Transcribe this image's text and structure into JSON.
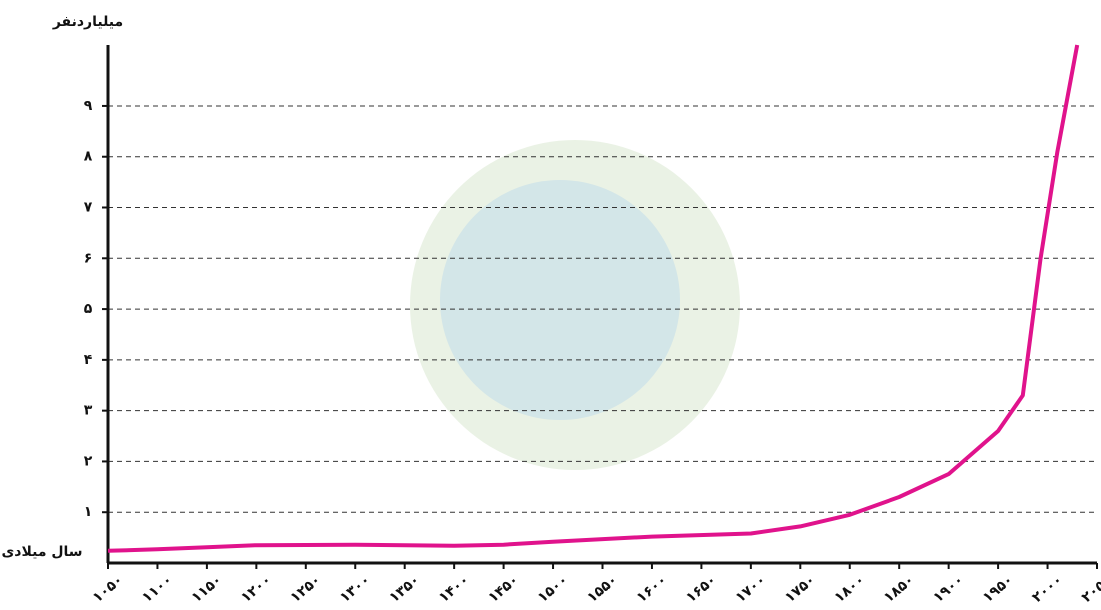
{
  "chart_data": {
    "type": "line",
    "y_label": "میلیاردنفر",
    "x_label": "سال میلادی",
    "color": "#e0138c",
    "grid": true,
    "xlim": [
      1050,
      2050
    ],
    "ylim": [
      0,
      10.2
    ],
    "yticks": [
      {
        "value": 1,
        "label": "۱"
      },
      {
        "value": 2,
        "label": "۲"
      },
      {
        "value": 3,
        "label": "۳"
      },
      {
        "value": 4,
        "label": "۴"
      },
      {
        "value": 5,
        "label": "۵"
      },
      {
        "value": 6,
        "label": "۶"
      },
      {
        "value": 7,
        "label": "۷"
      },
      {
        "value": 8,
        "label": "۸"
      },
      {
        "value": 9,
        "label": "۹"
      }
    ],
    "xticks": [
      {
        "value": 1050,
        "label": "۱۰۵۰"
      },
      {
        "value": 1100,
        "label": "۱۱۰۰"
      },
      {
        "value": 1150,
        "label": "۱۱۵۰"
      },
      {
        "value": 1200,
        "label": "۱۲۰۰"
      },
      {
        "value": 1250,
        "label": "۱۲۵۰"
      },
      {
        "value": 1300,
        "label": "۱۳۰۰"
      },
      {
        "value": 1350,
        "label": "۱۳۵۰"
      },
      {
        "value": 1400,
        "label": "۱۴۰۰"
      },
      {
        "value": 1450,
        "label": "۱۴۵۰"
      },
      {
        "value": 1500,
        "label": "۱۵۰۰"
      },
      {
        "value": 1550,
        "label": "۱۵۵۰"
      },
      {
        "value": 1600,
        "label": "۱۶۰۰"
      },
      {
        "value": 1650,
        "label": "۱۶۵۰"
      },
      {
        "value": 1700,
        "label": "۱۷۰۰"
      },
      {
        "value": 1750,
        "label": "۱۷۵۰"
      },
      {
        "value": 1800,
        "label": "۱۸۰۰"
      },
      {
        "value": 1850,
        "label": "۱۸۵۰"
      },
      {
        "value": 1900,
        "label": "۱۹۰۰"
      },
      {
        "value": 1950,
        "label": "۱۹۵۰"
      },
      {
        "value": 2000,
        "label": "۲۰۰۰"
      },
      {
        "value": 2050,
        "label": "۲۰۵۰"
      }
    ],
    "x": [
      1050,
      1100,
      1150,
      1200,
      1300,
      1400,
      1450,
      1500,
      1600,
      1700,
      1750,
      1800,
      1850,
      1900,
      1950,
      1975,
      1993,
      2010,
      2030
    ],
    "values": [
      0.24,
      0.27,
      0.31,
      0.35,
      0.36,
      0.34,
      0.36,
      0.42,
      0.52,
      0.58,
      0.72,
      0.95,
      1.3,
      1.75,
      2.6,
      3.3,
      6.0,
      8.1,
      10.2
    ]
  }
}
